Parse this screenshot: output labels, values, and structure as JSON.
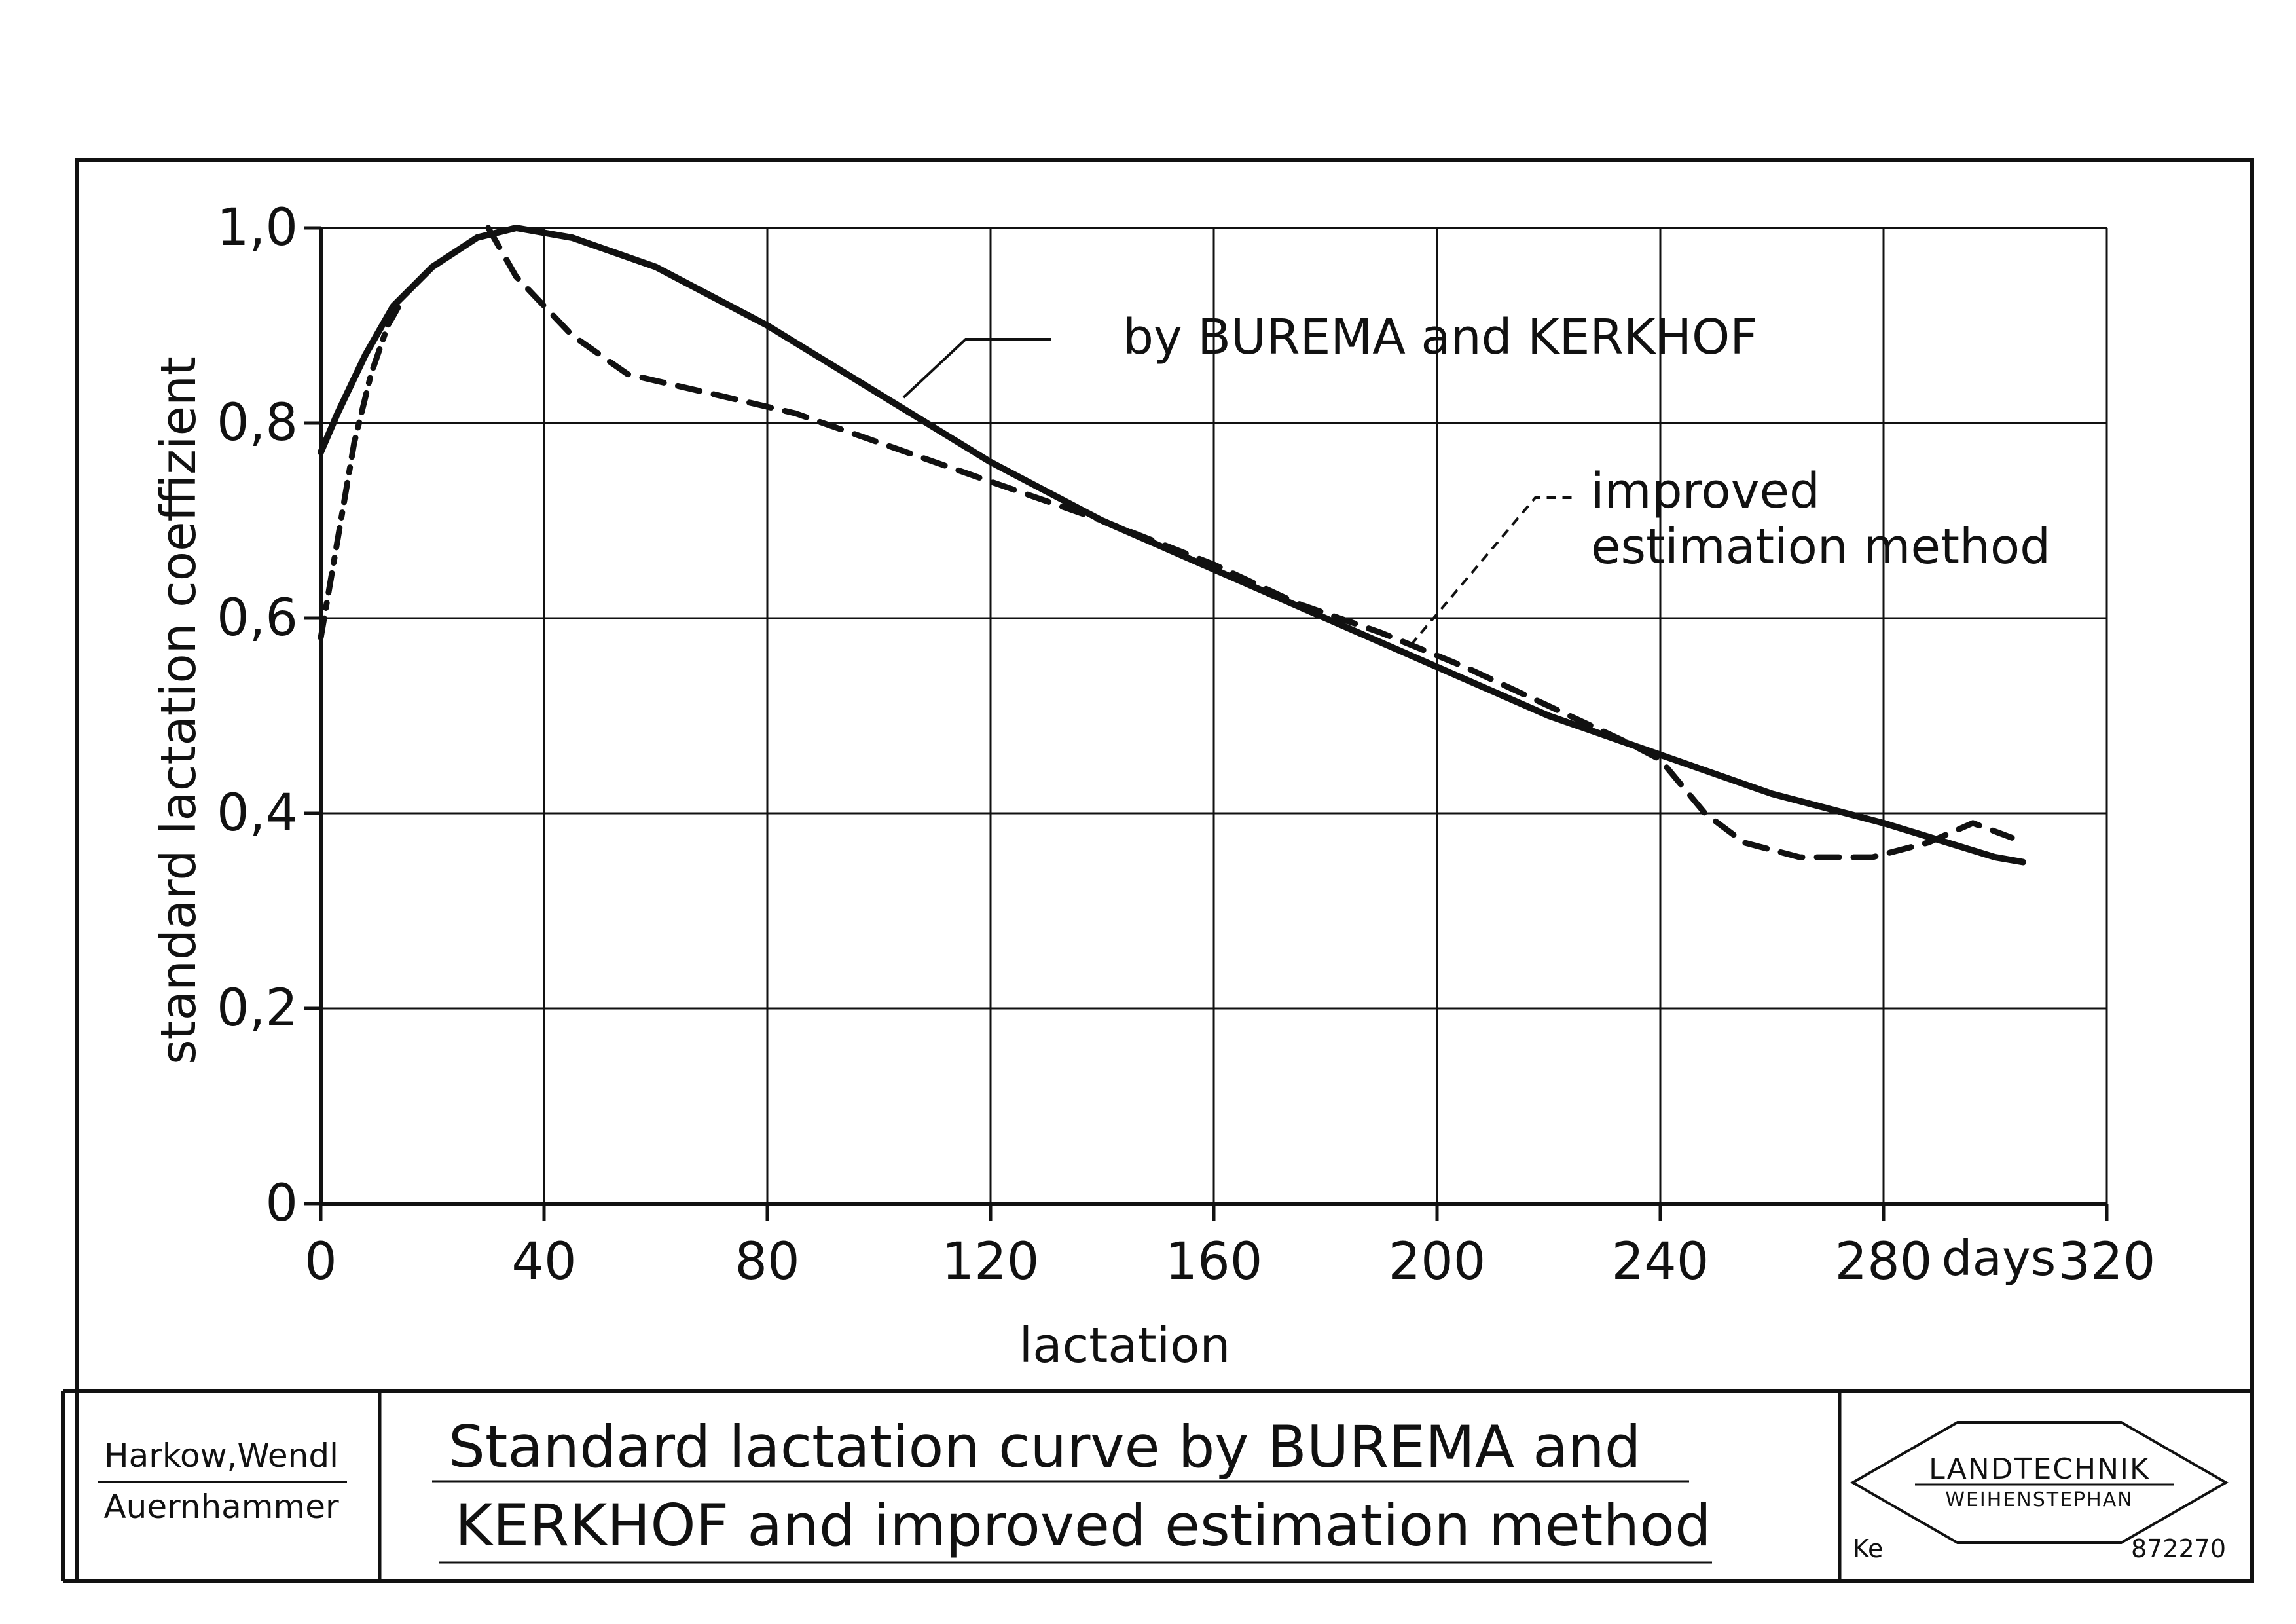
{
  "chart_data": {
    "type": "line",
    "title": "",
    "xlabel": "lactation",
    "x_unit": "days",
    "ylabel": "standard lactation coeffizient",
    "xlim": [
      0,
      320
    ],
    "ylim": [
      0,
      1.0
    ],
    "x_ticks": [
      "0",
      "40",
      "80",
      "120",
      "160",
      "200",
      "240",
      "280",
      "320"
    ],
    "y_ticks": [
      "0",
      "0,2",
      "0,4",
      "0,6",
      "0,8",
      "1,0"
    ],
    "grid": true,
    "series": [
      {
        "name": "by BUREMA and KERKHOF",
        "style": "solid",
        "points": [
          [
            0,
            0.77
          ],
          [
            3,
            0.81
          ],
          [
            8,
            0.87
          ],
          [
            13,
            0.92
          ],
          [
            20,
            0.96
          ],
          [
            28,
            0.99
          ],
          [
            35,
            1.0
          ],
          [
            45,
            0.99
          ],
          [
            60,
            0.96
          ],
          [
            80,
            0.9
          ],
          [
            100,
            0.83
          ],
          [
            120,
            0.76
          ],
          [
            140,
            0.7
          ],
          [
            160,
            0.65
          ],
          [
            180,
            0.6
          ],
          [
            200,
            0.55
          ],
          [
            220,
            0.5
          ],
          [
            240,
            0.46
          ],
          [
            260,
            0.42
          ],
          [
            280,
            0.39
          ],
          [
            300,
            0.355
          ],
          [
            305,
            0.35
          ]
        ]
      },
      {
        "name": "improved estimation method",
        "style": "dashed",
        "points": [
          [
            30,
            1.0
          ],
          [
            35,
            0.95
          ],
          [
            45,
            0.89
          ],
          [
            55,
            0.85
          ],
          [
            70,
            0.83
          ],
          [
            85,
            0.81
          ],
          [
            100,
            0.78
          ],
          [
            120,
            0.74
          ],
          [
            140,
            0.7
          ],
          [
            160,
            0.655
          ],
          [
            175,
            0.615
          ],
          [
            190,
            0.585
          ],
          [
            205,
            0.55
          ],
          [
            220,
            0.51
          ],
          [
            235,
            0.47
          ],
          [
            240,
            0.455
          ],
          [
            248,
            0.4
          ],
          [
            255,
            0.37
          ],
          [
            265,
            0.355
          ],
          [
            278,
            0.355
          ],
          [
            288,
            0.37
          ],
          [
            296,
            0.39
          ],
          [
            303,
            0.375
          ]
        ]
      },
      {
        "name": "",
        "style": "dashdot",
        "points": [
          [
            0,
            0.58
          ],
          [
            3,
            0.68
          ],
          [
            6,
            0.78
          ],
          [
            9,
            0.85
          ],
          [
            12,
            0.9
          ],
          [
            14,
            0.92
          ]
        ]
      }
    ]
  },
  "annotations": {
    "burema": "by BUREMA and KERKHOF",
    "improved_line1": "improved",
    "improved_line2": "estimation method"
  },
  "footer": {
    "authors_line1": "Harkow,Wendl",
    "authors_line2": "Auernhammer",
    "title_line1": "Standard lactation curve by BUREMA and",
    "title_line2": "KERKHOF and improved estimation method",
    "logo_line1": "LANDTECHNIK",
    "logo_line2": "WEIHENSTEPHAN",
    "logo_code": "Ke",
    "logo_number": "872270"
  }
}
